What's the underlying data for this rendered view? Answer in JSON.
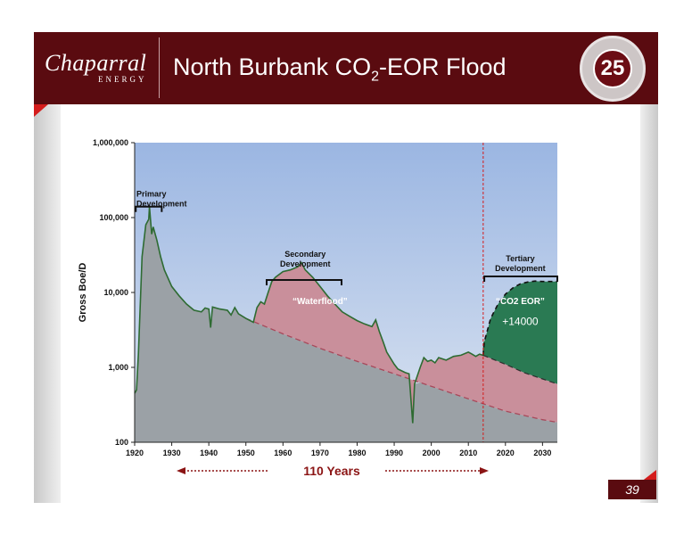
{
  "header": {
    "logo_text": "Chaparral",
    "logo_subtext": "ENERGY",
    "title_pre": "North Burbank CO",
    "title_sub": "2",
    "title_post": "-EOR Flood",
    "badge_number": "25"
  },
  "page_number": "39",
  "colors": {
    "header": "#5a0b10",
    "primary_fill": "#9ba1a6",
    "waterflood_fill": "#c98f9b",
    "co2_fill": "#2a7a53",
    "production_line": "#2e6b32",
    "accent_red": "#d41c1c",
    "sky_top": "#9bb6e2",
    "sky_bottom": "#dbe4f1"
  },
  "chart_data": {
    "type": "area",
    "ylabel": "Gross Boe/D",
    "xlabel": "",
    "y_scale": "log",
    "ylim": [
      100,
      1000000
    ],
    "xlim": [
      1920,
      2034
    ],
    "y_ticks": [
      100,
      1000,
      10000,
      100000,
      1000000
    ],
    "y_tick_labels": [
      "100",
      "1,000",
      "10,000",
      "100,000",
      "1,000,000"
    ],
    "x_ticks": [
      1920,
      1930,
      1940,
      1950,
      1960,
      1970,
      1980,
      1990,
      2000,
      2010,
      2020,
      2030
    ],
    "x_tick_labels": [
      "1920",
      "1930",
      "1940",
      "1950",
      "1960",
      "1970",
      "1980",
      "1990",
      "2000",
      "2010",
      "2020",
      "2030"
    ],
    "series": [
      {
        "name": "",
        "points": [
          [
            1920,
            450
          ],
          [
            1920.5,
            500
          ],
          [
            1921,
            1500
          ],
          [
            1922,
            30000
          ],
          [
            1923,
            80000
          ],
          [
            1923.8,
            95000
          ],
          [
            1924,
            140000
          ],
          [
            1924.6,
            60000
          ],
          [
            1925,
            75000
          ],
          [
            1926,
            50000
          ],
          [
            1927,
            30000
          ],
          [
            1928,
            20000
          ],
          [
            1930,
            12000
          ],
          [
            1932,
            9000
          ],
          [
            1934,
            7000
          ],
          [
            1936,
            5800
          ],
          [
            1938,
            5500
          ],
          [
            1939,
            6200
          ],
          [
            1940,
            6000
          ],
          [
            1940.5,
            3400
          ],
          [
            1941,
            6400
          ],
          [
            1943,
            6000
          ],
          [
            1945,
            5800
          ],
          [
            1946,
            5000
          ],
          [
            1947,
            6300
          ],
          [
            1948,
            5200
          ],
          [
            1950,
            4500
          ],
          [
            1952,
            4000
          ],
          [
            1953,
            6300
          ],
          [
            1954,
            7500
          ],
          [
            1955,
            7000
          ],
          [
            1956,
            10000
          ],
          [
            1957,
            14000
          ],
          [
            1958,
            16000
          ],
          [
            1960,
            19000
          ],
          [
            1962,
            20000
          ],
          [
            1964,
            22000
          ],
          [
            1965,
            25000
          ],
          [
            1966,
            20000
          ],
          [
            1968,
            16000
          ],
          [
            1970,
            12000
          ],
          [
            1972,
            9000
          ],
          [
            1974,
            7000
          ],
          [
            1976,
            5500
          ],
          [
            1978,
            4800
          ],
          [
            1980,
            4200
          ],
          [
            1982,
            3800
          ],
          [
            1984,
            3500
          ],
          [
            1985,
            4300
          ],
          [
            1986,
            3000
          ],
          [
            1987,
            2200
          ],
          [
            1988,
            1600
          ],
          [
            1990,
            1100
          ],
          [
            1991,
            950
          ],
          [
            1993,
            850
          ],
          [
            1994,
            820
          ],
          [
            1995,
            180
          ],
          [
            1995.5,
            600
          ],
          [
            1997,
            1000
          ],
          [
            1998,
            1350
          ],
          [
            1999,
            1200
          ],
          [
            2000,
            1250
          ],
          [
            2001,
            1150
          ],
          [
            2002,
            1350
          ],
          [
            2004,
            1250
          ],
          [
            2006,
            1400
          ],
          [
            2008,
            1450
          ],
          [
            2010,
            1600
          ],
          [
            2011,
            1500
          ],
          [
            2012,
            1400
          ],
          [
            2013,
            1500
          ],
          [
            2014,
            1450
          ],
          [
            2014.3,
            2200
          ],
          [
            2016,
            4500
          ],
          [
            2018,
            7000
          ],
          [
            2020,
            9500
          ],
          [
            2022,
            11500
          ],
          [
            2024,
            13000
          ],
          [
            2026,
            13800
          ],
          [
            2028,
            14200
          ],
          [
            2030,
            14000
          ],
          [
            2034,
            14000
          ]
        ]
      },
      {
        "name": "",
        "points": [
          [
            1950,
            4500
          ],
          [
            1960,
            2800
          ],
          [
            1970,
            1800
          ],
          [
            1980,
            1200
          ],
          [
            1990,
            820
          ],
          [
            2000,
            560
          ],
          [
            2010,
            380
          ],
          [
            2020,
            260
          ],
          [
            2030,
            200
          ],
          [
            2034,
            185
          ]
        ]
      },
      {
        "name": "",
        "points": [
          [
            2014,
            1450
          ],
          [
            2020,
            1100
          ],
          [
            2025,
            850
          ],
          [
            2030,
            700
          ],
          [
            2034,
            600
          ]
        ]
      }
    ],
    "annotations": [
      {
        "text_lines": [
          "Primary",
          "Development"
        ],
        "x": 1920,
        "y": 190000
      },
      {
        "text_lines": [
          "Secondary",
          "Development"
        ],
        "x": 1966,
        "y": 30000
      },
      {
        "text_lines": [
          "Tertiary",
          "Development"
        ],
        "x": 2024,
        "y": 26000
      },
      {
        "text": "“Waterflood”",
        "x": 1970,
        "y": 7000
      },
      {
        "text": "“CO2 EOR”",
        "x": 2024,
        "y": 7000
      },
      {
        "text": "+14000",
        "x": 2024,
        "y": 3700
      }
    ],
    "brackets": [
      {
        "x1": 1920.3,
        "x2": 1927.3,
        "y": 140000
      },
      {
        "x1": 1955.6,
        "x2": 1975.8,
        "y": 14700
      },
      {
        "x1": 2014.3,
        "x2": 2034,
        "y": 16400
      }
    ],
    "vline_x": 2014,
    "footer_label": "110 Years",
    "grid": false,
    "legend": "none"
  }
}
